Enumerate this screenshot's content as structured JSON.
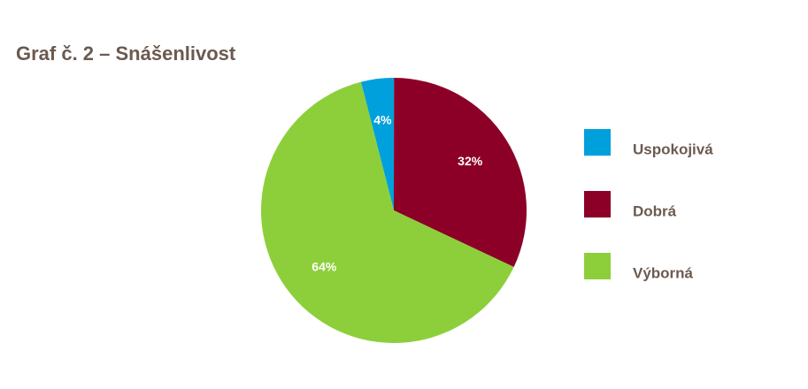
{
  "chart_data": {
    "type": "pie",
    "title": "Graf č. 2 – Snášenlivost",
    "categories": [
      "Uspokojivá",
      "Dobrá",
      "Výborná"
    ],
    "values": [
      4,
      32,
      64
    ],
    "value_labels": [
      "4%",
      "32%",
      "64%"
    ],
    "colors": [
      "#00a0dc",
      "#8c0028",
      "#8ccf3a"
    ]
  }
}
